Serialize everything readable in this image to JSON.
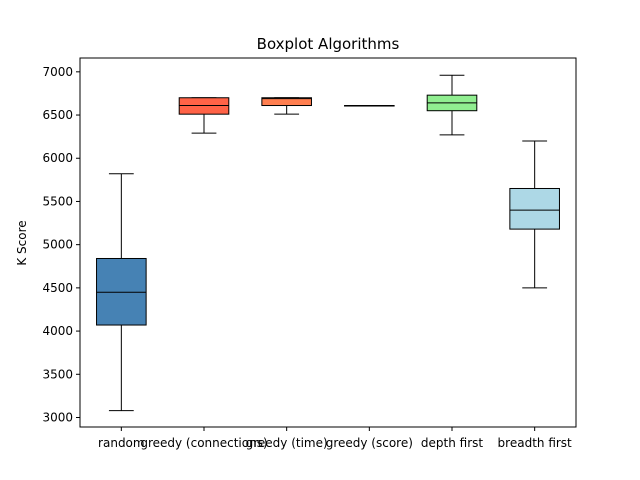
{
  "chart_data": {
    "type": "boxplot",
    "title": "Boxplot Algorithms",
    "xlabel": "",
    "ylabel": "K Score",
    "ylim": [
      2890,
      7160
    ],
    "yticks": [
      3000,
      3500,
      4000,
      4500,
      5000,
      5500,
      6000,
      6500,
      7000
    ],
    "grid": false,
    "categories": [
      "random",
      "greedy (connections)",
      "greedy (time)",
      "greedy (score)",
      "depth first",
      "breadth first"
    ],
    "boxes": [
      {
        "name": "random",
        "whisker_low": 3080,
        "q1": 4070,
        "median": 4450,
        "q3": 4840,
        "whisker_high": 5820,
        "color": "#4682b4"
      },
      {
        "name": "greedy (connections)",
        "whisker_low": 6290,
        "q1": 6510,
        "median": 6610,
        "q3": 6700,
        "whisker_high": 6700,
        "color": "#ff6347"
      },
      {
        "name": "greedy (time)",
        "whisker_low": 6510,
        "q1": 6610,
        "median": 6690,
        "q3": 6700,
        "whisker_high": 6700,
        "color": "#ff7f50"
      },
      {
        "name": "greedy (score)",
        "whisker_low": 6610,
        "q1": 6610,
        "median": 6610,
        "q3": 6610,
        "whisker_high": 6610,
        "color": "#ffa07a"
      },
      {
        "name": "depth first",
        "whisker_low": 6270,
        "q1": 6550,
        "median": 6640,
        "q3": 6730,
        "whisker_high": 6960,
        "color": "#90ee90"
      },
      {
        "name": "breadth first",
        "whisker_low": 4500,
        "q1": 5180,
        "median": 5400,
        "q3": 5650,
        "whisker_high": 6200,
        "color": "#add8e6"
      }
    ]
  }
}
